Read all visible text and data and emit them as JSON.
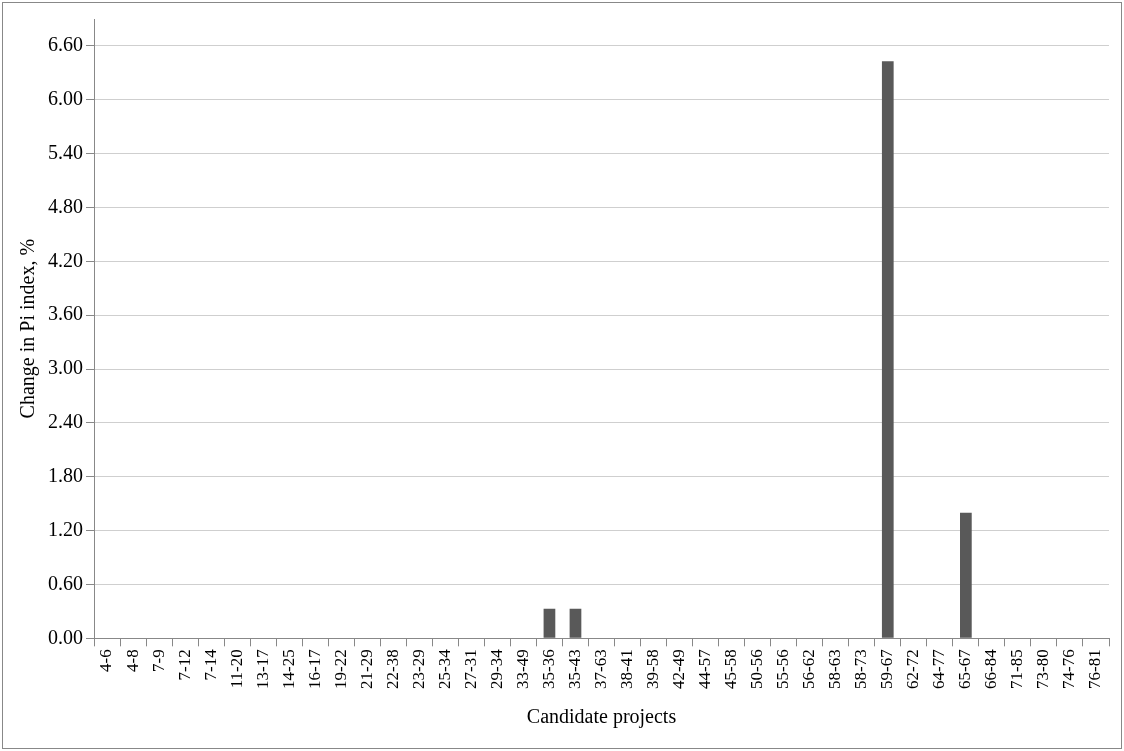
{
  "chart_data": {
    "type": "bar",
    "xlabel": "Candidate projects",
    "ylabel": "Change in Pi index, %",
    "categories": [
      "4-6",
      "4-8",
      "7-9",
      "7-12",
      "7-14",
      "11-20",
      "13-17",
      "14-25",
      "16-17",
      "19-22",
      "21-29",
      "22-38",
      "23-29",
      "25-34",
      "27-31",
      "29-34",
      "33-49",
      "35-36",
      "35-43",
      "37-63",
      "38-41",
      "39-58",
      "42-49",
      "44-57",
      "45-58",
      "50-56",
      "55-56",
      "56-62",
      "58-63",
      "58-73",
      "59-67",
      "62-72",
      "64-77",
      "65-67",
      "66-84",
      "71-85",
      "73-80",
      "74-76",
      "76-81"
    ],
    "values": [
      0,
      0,
      0,
      0,
      0,
      0,
      0,
      0,
      0,
      0,
      0,
      0,
      0,
      0,
      0,
      0,
      0,
      0.33,
      0.33,
      0,
      0,
      0,
      0,
      0,
      0,
      0,
      0,
      0,
      0,
      0,
      6.43,
      0,
      0,
      1.4,
      0,
      0,
      0,
      0,
      0
    ],
    "color": "#595959",
    "ylim": [
      0,
      6.9
    ],
    "yticks": [
      {
        "value": 0,
        "label": "0.00"
      },
      {
        "value": 0.6,
        "label": "0.60"
      },
      {
        "value": 1.2,
        "label": "1.20"
      },
      {
        "value": 1.8,
        "label": "1.80"
      },
      {
        "value": 2.4,
        "label": "2.40"
      },
      {
        "value": 3,
        "label": "3.00"
      },
      {
        "value": 3.6,
        "label": "3.60"
      },
      {
        "value": 4.2,
        "label": "4.20"
      },
      {
        "value": 4.8,
        "label": "4.80"
      },
      {
        "value": 5.4,
        "label": "5.40"
      },
      {
        "value": 6,
        "label": "6.00"
      },
      {
        "value": 6.6,
        "label": "6.60"
      }
    ],
    "grid": "y",
    "legend": false
  }
}
